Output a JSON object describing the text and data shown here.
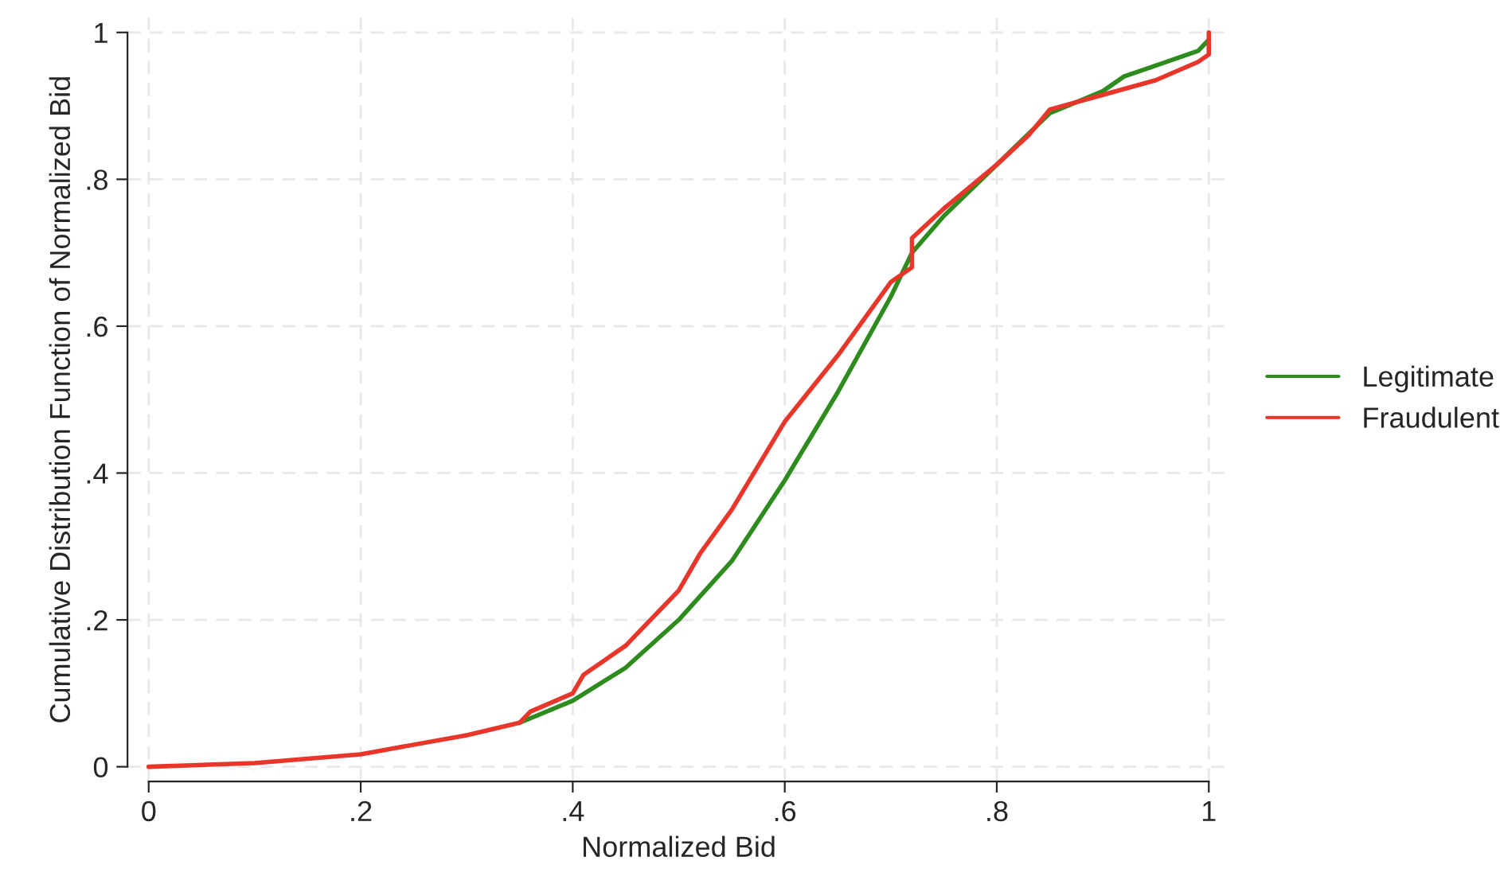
{
  "chart_data": {
    "type": "line",
    "xlabel": "Normalized Bid",
    "ylabel": "Cumulative Distribution Function of Normalized Bid",
    "xlim": [
      0,
      1
    ],
    "ylim": [
      0,
      1
    ],
    "xticks": [
      0,
      {
        "value": 0.2,
        "label": ".2"
      },
      {
        "value": 0.4,
        "label": ".4"
      },
      {
        "value": 0.6,
        "label": ".6"
      },
      {
        "value": 0.8,
        "label": ".8"
      },
      1
    ],
    "yticks": [
      0,
      {
        "value": 0.2,
        "label": ".2"
      },
      {
        "value": 0.4,
        "label": ".4"
      },
      {
        "value": 0.6,
        "label": ".6"
      },
      {
        "value": 0.8,
        "label": ".8"
      },
      1
    ],
    "grid": true,
    "legend": "right",
    "line_style": "solid",
    "series": [
      {
        "name": "Legitimate",
        "color": "#2e8b1e",
        "x": [
          0.35,
          0.4,
          0.45,
          0.5,
          0.55,
          0.6,
          0.65,
          0.7,
          0.72,
          0.75,
          0.8,
          0.85,
          0.9,
          0.92,
          0.95,
          0.99,
          1.0
        ],
        "values": [
          0.06,
          0.09,
          0.135,
          0.2,
          0.28,
          0.39,
          0.51,
          0.64,
          0.7,
          0.75,
          0.82,
          0.89,
          0.92,
          0.94,
          0.955,
          0.975,
          0.99
        ]
      },
      {
        "name": "Fraudulent",
        "color": "#e8372a",
        "x": [
          0,
          0.1,
          0.2,
          0.3,
          0.35,
          0.36,
          0.4,
          0.41,
          0.45,
          0.5,
          0.52,
          0.55,
          0.6,
          0.65,
          0.7,
          0.72,
          0.72,
          0.75,
          0.8,
          0.83,
          0.85,
          0.9,
          0.95,
          0.99,
          1.0,
          1.0
        ],
        "values": [
          0,
          0.005,
          0.017,
          0.043,
          0.06,
          0.075,
          0.1,
          0.125,
          0.165,
          0.24,
          0.29,
          0.35,
          0.47,
          0.56,
          0.66,
          0.68,
          0.72,
          0.76,
          0.82,
          0.86,
          0.895,
          0.915,
          0.935,
          0.96,
          0.97,
          1.0
        ]
      }
    ]
  }
}
